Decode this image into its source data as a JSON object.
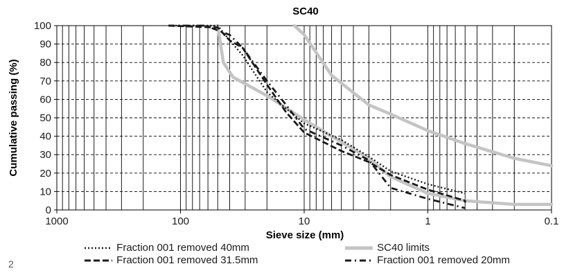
{
  "page_number": "2",
  "chart_data": {
    "type": "line",
    "title": "SC40",
    "xlabel": "Sieve size (mm)",
    "ylabel": "Cumulative passing (%)",
    "x_scale": "log",
    "x_reversed": true,
    "xlim": [
      1000,
      0.1
    ],
    "ylim": [
      0,
      100
    ],
    "x_ticks": [
      "1000",
      "100",
      "10",
      "1",
      "0.1"
    ],
    "y_ticks": [
      "0",
      "10",
      "20",
      "30",
      "40",
      "50",
      "60",
      "70",
      "80",
      "90",
      "100"
    ],
    "grid": true,
    "legend_position": "bottom",
    "colors": {
      "limits": "#c4c4c4",
      "series": "#1a1a1a",
      "grid": "#000000"
    },
    "series": [
      {
        "name": "Fraction 001 removed 40mm",
        "style": "dotted",
        "points": [
          [
            125,
            100
          ],
          [
            50,
            100
          ],
          [
            40,
            92
          ],
          [
            31.5,
            84
          ],
          [
            20,
            64
          ],
          [
            14,
            55
          ],
          [
            10,
            47
          ],
          [
            5,
            38
          ],
          [
            3,
            29
          ],
          [
            2,
            21
          ],
          [
            1,
            14
          ],
          [
            0.5,
            9
          ]
        ]
      },
      {
        "name": "SC40 limits",
        "style": "limit-envelope",
        "upper": [
          [
            12,
            100
          ],
          [
            10,
            95
          ],
          [
            6,
            73
          ],
          [
            3,
            57
          ],
          [
            2,
            52
          ],
          [
            1,
            43
          ],
          [
            0.5,
            36
          ],
          [
            0.2,
            28
          ],
          [
            0.1,
            24
          ]
        ],
        "lower": [
          [
            50,
            100
          ],
          [
            45,
            80
          ],
          [
            37.5,
            72
          ],
          [
            20,
            62
          ],
          [
            10,
            49
          ],
          [
            6,
            40
          ],
          [
            3,
            28
          ],
          [
            2,
            18
          ],
          [
            1,
            9
          ],
          [
            0.5,
            5
          ],
          [
            0.2,
            3
          ],
          [
            0.1,
            3
          ]
        ]
      },
      {
        "name": "Fraction 001 removed 31.5mm",
        "style": "dashed",
        "points": [
          [
            125,
            100
          ],
          [
            50,
            99
          ],
          [
            40,
            92
          ],
          [
            31.5,
            88
          ],
          [
            20,
            68
          ],
          [
            14,
            53
          ],
          [
            10,
            42
          ],
          [
            5,
            32
          ],
          [
            3,
            26
          ],
          [
            2,
            19
          ],
          [
            1,
            11
          ],
          [
            0.5,
            5
          ],
          [
            0.5,
            4
          ]
        ]
      },
      {
        "name": "Fraction 001 removed 20mm",
        "style": "dash-dot",
        "points": [
          [
            125,
            100
          ],
          [
            63,
            100
          ],
          [
            40,
            95
          ],
          [
            31.5,
            88
          ],
          [
            20,
            70
          ],
          [
            14,
            57
          ],
          [
            10,
            44
          ],
          [
            5,
            35
          ],
          [
            3,
            27
          ],
          [
            2,
            12
          ],
          [
            1,
            6
          ],
          [
            0.5,
            1
          ]
        ]
      }
    ]
  }
}
